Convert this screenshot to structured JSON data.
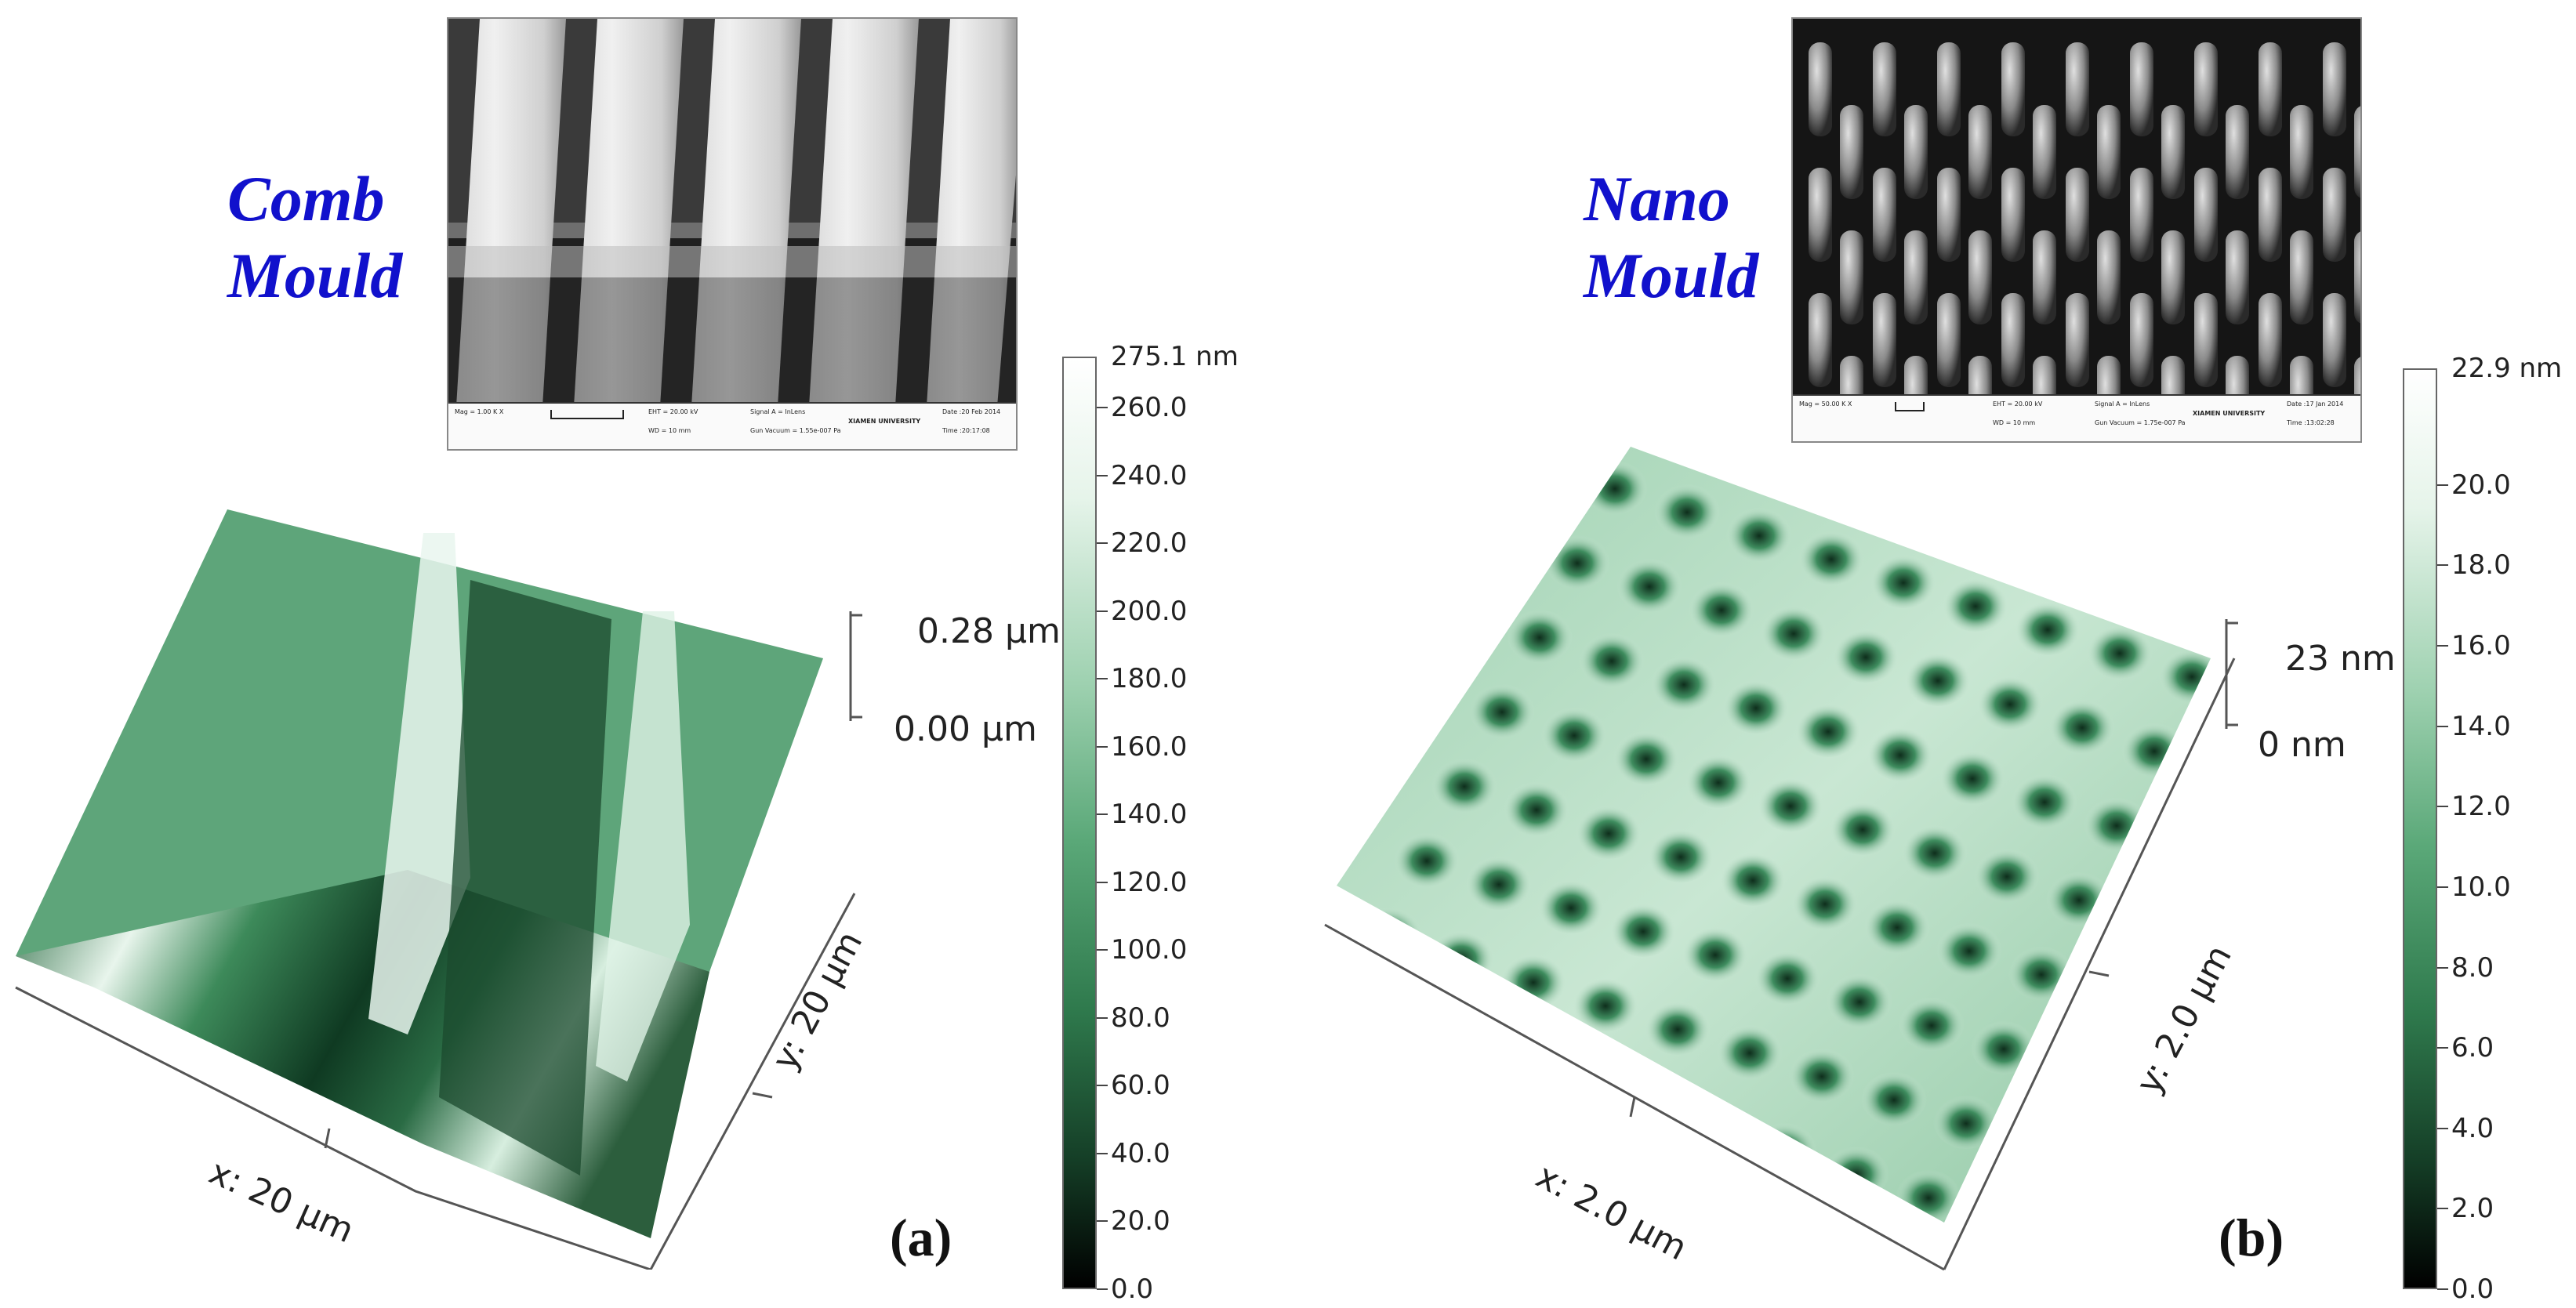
{
  "panel_a": {
    "title_line1": "Comb",
    "title_line2": "Mould",
    "panel_label": "(a)",
    "z_top": "0.28 µm",
    "z_bottom": "0.00 µm",
    "x_axis": "x: 20 µm",
    "y_axis": "y: 20 µm",
    "colorbar": {
      "max_label": "275.1 nm",
      "ticks": [
        "260.0",
        "240.0",
        "220.0",
        "200.0",
        "180.0",
        "160.0",
        "140.0",
        "120.0",
        "100.0",
        "80.0",
        "60.0",
        "40.0",
        "20.0",
        "0.0"
      ],
      "tick_values": [
        260,
        240,
        220,
        200,
        180,
        160,
        140,
        120,
        100,
        80,
        60,
        40,
        20,
        0
      ],
      "max_value": 275.1
    },
    "sem_info": {
      "mag": "Mag = 1.00 K X",
      "wd": "WD = 10 mm",
      "eht": "EHT = 20.00 kV",
      "signal": "Signal A = InLens",
      "vacuum": "Gun Vacuum = 1.55e-007 Pa",
      "org": "XIAMEN UNIVERSITY",
      "date": "Date :20 Feb 2014",
      "time": "Time :20:17:08"
    }
  },
  "panel_b": {
    "title_line1": "Nano",
    "title_line2": "Mould",
    "panel_label": "(b)",
    "z_top": "23 nm",
    "z_bottom": "0 nm",
    "x_axis": "x: 2.0 µm",
    "y_axis": "y: 2.0 µm",
    "colorbar": {
      "max_label": "22.9 nm",
      "ticks": [
        "20.0",
        "18.0",
        "16.0",
        "14.0",
        "12.0",
        "10.0",
        "8.0",
        "6.0",
        "4.0",
        "2.0",
        "0.0"
      ],
      "tick_values": [
        20,
        18,
        16,
        14,
        12,
        10,
        8,
        6,
        4,
        2,
        0
      ],
      "max_value": 22.9
    },
    "sem_info": {
      "mag": "Mag = 50.00 K X",
      "wd": "WD = 10 mm",
      "eht": "EHT = 20.00 kV",
      "signal": "Signal A = InLens",
      "vacuum": "Gun Vacuum = 1.75e-007 Pa",
      "org": "XIAMEN UNIVERSITY",
      "date": "Date :17 Jan 2014",
      "time": "Time :13:02:28"
    }
  },
  "colors": {
    "title_blue": "#1111cc",
    "afm_green_light": "#eef8f1",
    "afm_green_mid": "#5fb07f",
    "afm_green_dark": "#0c2a18"
  }
}
